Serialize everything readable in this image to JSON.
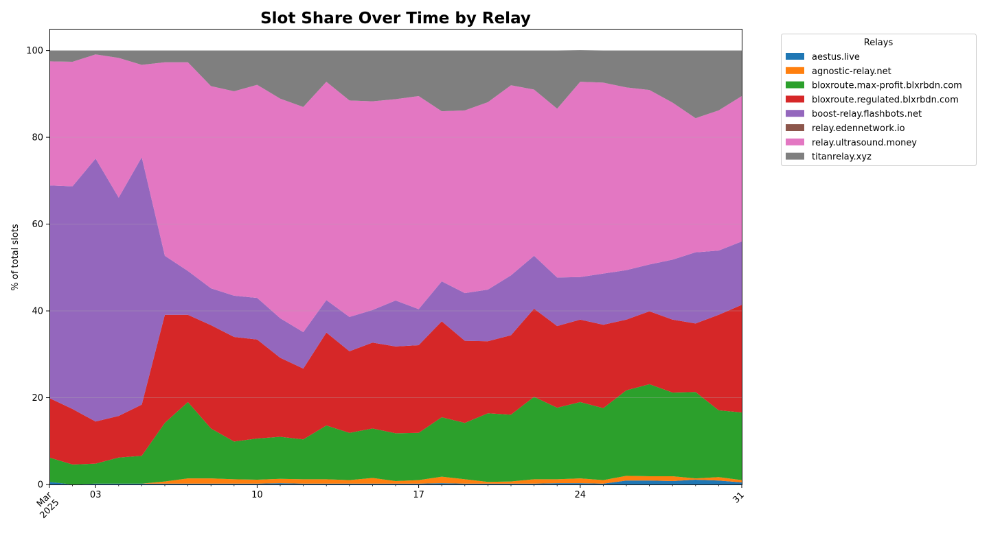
{
  "chart_data": {
    "type": "area",
    "stacked": true,
    "title": "Slot Share Over Time by Relay",
    "xlabel": "",
    "ylabel": "% of total slots",
    "ylim": [
      0,
      105
    ],
    "xlim": [
      1,
      31
    ],
    "grid": "y",
    "legend_placement": "outside-top-right",
    "legend_title": "Relays",
    "x_ticks": [
      {
        "x": 1,
        "label": "Mar\n2025"
      },
      {
        "x": 3,
        "label": "03"
      },
      {
        "x": 10,
        "label": "10"
      },
      {
        "x": 17,
        "label": "17"
      },
      {
        "x": 24,
        "label": "24"
      },
      {
        "x": 31,
        "label": "31"
      }
    ],
    "y_ticks": [
      0,
      20,
      40,
      60,
      80,
      100
    ],
    "x": [
      1,
      2,
      3,
      4,
      5,
      6,
      7,
      8,
      9,
      10,
      11,
      12,
      13,
      14,
      15,
      16,
      17,
      18,
      19,
      20,
      21,
      22,
      23,
      24,
      25,
      26,
      27,
      28,
      29,
      30,
      31
    ],
    "series": [
      {
        "name": "aestus.live",
        "color": "#1f77b4",
        "values": [
          0.6,
          0,
          0.2,
          0.2,
          0.2,
          0.2,
          0.2,
          0.2,
          0.2,
          0.2,
          0.3,
          0.2,
          0.2,
          0.2,
          0.2,
          0.2,
          0.2,
          0.3,
          0.2,
          0.2,
          0.2,
          0.2,
          0.3,
          0.3,
          0.2,
          0.9,
          0.9,
          0.8,
          1.1,
          0.9,
          0.5
        ]
      },
      {
        "name": "agnostic-relay.net",
        "color": "#ff7f0e",
        "values": [
          0,
          0,
          0,
          0,
          0,
          0.5,
          1.2,
          1.2,
          1.0,
          0.9,
          1.0,
          1.0,
          1.0,
          0.8,
          1.3,
          0.6,
          0.8,
          1.5,
          1.0,
          0.4,
          0.5,
          1.0,
          0.9,
          1.1,
          0.8,
          1.1,
          1.0,
          1.1,
          0.3,
          0.8,
          0.5
        ]
      },
      {
        "name": "bloxroute.max-profit.blxrbdn.com",
        "color": "#2ca02c",
        "values": [
          5.6,
          4.6,
          4.6,
          6.0,
          6.4,
          13.5,
          17.6,
          11.5,
          8.7,
          9.5,
          9.7,
          9.2,
          12.4,
          10.9,
          11.4,
          11.0,
          10.9,
          13.7,
          13.0,
          15.8,
          15.4,
          19.0,
          16.5,
          17.6,
          16.6,
          19.7,
          21.2,
          19.3,
          19.9,
          15.4,
          15.6
        ]
      },
      {
        "name": "bloxroute.regulated.blxrbdn.com",
        "color": "#d62728",
        "values": [
          13.7,
          12.8,
          9.7,
          9.6,
          11.8,
          24.9,
          20.1,
          23.8,
          24.1,
          22.8,
          18.2,
          16.3,
          21.4,
          18.8,
          19.8,
          20.0,
          20.2,
          22.1,
          18.9,
          16.6,
          18.3,
          20.3,
          18.8,
          19.0,
          19.2,
          16.3,
          16.8,
          16.8,
          15.8,
          22.0,
          24.8
        ]
      },
      {
        "name": "boost-relay.flashbots.net",
        "color": "#9467bd",
        "values": [
          49.0,
          51.3,
          60.6,
          50.3,
          57.0,
          13.6,
          10.1,
          8.5,
          9.5,
          9.6,
          9.1,
          8.4,
          7.5,
          7.9,
          7.5,
          10.6,
          8.3,
          9.2,
          11.0,
          11.9,
          13.8,
          12.2,
          11.2,
          9.8,
          11.8,
          11.4,
          10.8,
          13.8,
          16.4,
          14.8,
          14.6
        ]
      },
      {
        "name": "relay.edennetwork.io",
        "color": "#8c564b",
        "values": [
          0,
          0,
          0,
          0,
          0,
          0,
          0,
          0,
          0,
          0,
          0,
          0,
          0,
          0,
          0,
          0,
          0,
          0,
          0,
          0,
          0,
          0,
          0,
          0,
          0,
          0,
          0,
          0,
          0,
          0,
          0
        ]
      },
      {
        "name": "relay.ultrasound.money",
        "color": "#e377c2",
        "values": [
          28.6,
          28.7,
          24.0,
          32.2,
          21.3,
          44.6,
          48.1,
          46.6,
          47.1,
          49.1,
          50.6,
          51.9,
          50.3,
          49.9,
          48.1,
          46.4,
          49.1,
          39.2,
          42.1,
          43.2,
          43.8,
          38.3,
          38.9,
          45.0,
          44.0,
          42.1,
          40.2,
          36.2,
          30.9,
          32.3,
          33.5
        ]
      },
      {
        "name": "titanrelay.xyz",
        "color": "#7f7f7f",
        "values": [
          2.5,
          2.6,
          0.9,
          1.7,
          3.3,
          2.7,
          2.7,
          8.2,
          9.4,
          7.9,
          11.1,
          13.0,
          7.2,
          11.5,
          11.7,
          11.2,
          10.5,
          14.0,
          13.8,
          11.9,
          8.0,
          9.0,
          13.4,
          7.3,
          7.4,
          8.5,
          9.1,
          12.0,
          15.6,
          13.8,
          10.5
        ]
      }
    ]
  }
}
